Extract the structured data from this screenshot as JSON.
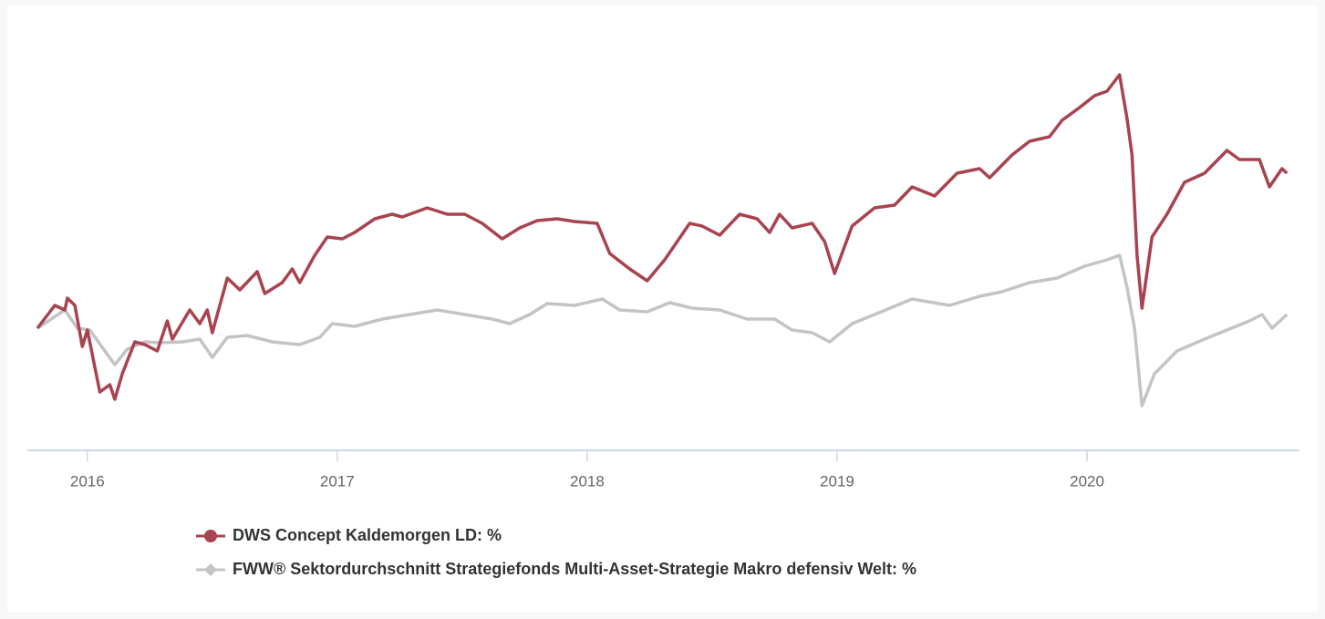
{
  "chart_data": {
    "type": "line",
    "xlim": [
      2015.76,
      2020.85
    ],
    "xticks": [
      2016,
      2017,
      2018,
      2019,
      2020
    ],
    "ylim": [
      -13.4,
      31
    ],
    "legend": "bottom-left",
    "series": [
      {
        "name": "DWS Concept Kaldemorgen LD: %",
        "color": "#a8434f",
        "marker": "circle",
        "x": [
          2015.8,
          2015.87,
          2015.91,
          2015.92,
          2015.95,
          2015.98,
          2016.0,
          2016.05,
          2016.09,
          2016.11,
          2016.14,
          2016.19,
          2016.23,
          2016.28,
          2016.32,
          2016.34,
          2016.41,
          2016.45,
          2016.48,
          2016.5,
          2016.56,
          2016.61,
          2016.68,
          2016.71,
          2016.78,
          2016.82,
          2016.85,
          2016.91,
          2016.96,
          2017.02,
          2017.07,
          2017.15,
          2017.22,
          2017.26,
          2017.36,
          2017.44,
          2017.51,
          2017.58,
          2017.66,
          2017.73,
          2017.8,
          2017.88,
          2017.95,
          2018.04,
          2018.09,
          2018.17,
          2018.24,
          2018.31,
          2018.41,
          2018.46,
          2018.53,
          2018.61,
          2018.68,
          2018.73,
          2018.77,
          2018.82,
          2018.9,
          2018.95,
          2018.99,
          2019.06,
          2019.15,
          2019.23,
          2019.3,
          2019.39,
          2019.48,
          2019.57,
          2019.61,
          2019.7,
          2019.77,
          2019.85,
          2019.9,
          2019.97,
          2020.03,
          2020.08,
          2020.13,
          2020.16,
          2020.18,
          2020.2,
          2020.22,
          2020.26,
          2020.32,
          2020.39,
          2020.47,
          2020.56,
          2020.61,
          2020.69,
          2020.73,
          2020.78,
          2020.8
        ],
        "values": [
          0,
          2.5,
          2.0,
          3.3,
          2.5,
          -2.0,
          -0.2,
          -7.0,
          -6.2,
          -7.8,
          -5.0,
          -1.5,
          -1.8,
          -2.5,
          0.8,
          -1.2,
          2.0,
          0.5,
          2.0,
          -0.5,
          5.5,
          4.2,
          6.2,
          3.8,
          5.0,
          6.5,
          5.0,
          8.0,
          10.0,
          9.8,
          10.5,
          12.0,
          12.5,
          12.2,
          13.2,
          12.5,
          12.5,
          11.5,
          9.8,
          11.0,
          11.8,
          12.0,
          11.7,
          11.5,
          8.2,
          6.5,
          5.2,
          7.5,
          11.5,
          11.2,
          10.2,
          12.5,
          12.0,
          10.5,
          12.5,
          11.0,
          11.5,
          9.5,
          6.0,
          11.2,
          13.2,
          13.5,
          15.5,
          14.5,
          17.0,
          17.5,
          16.5,
          19.0,
          20.5,
          21.0,
          22.8,
          24.2,
          25.5,
          26.0,
          27.8,
          23.0,
          19.0,
          8.0,
          2.2,
          10.0,
          12.5,
          16.0,
          17.0,
          19.5,
          18.5,
          18.5,
          15.5,
          17.5,
          17.0
        ]
      },
      {
        "name": "FWW® Sektordurchschnitt Strategiefonds Multi-Asset-Strategie Makro defensiv Welt: %",
        "color": "#c4c4c4",
        "marker": "diamond",
        "x": [
          2015.8,
          2015.91,
          2015.96,
          2016.01,
          2016.07,
          2016.11,
          2016.16,
          2016.23,
          2016.29,
          2016.38,
          2016.45,
          2016.5,
          2016.56,
          2016.64,
          2016.74,
          2016.85,
          2016.93,
          2016.98,
          2017.07,
          2017.18,
          2017.29,
          2017.4,
          2017.51,
          2017.62,
          2017.69,
          2017.77,
          2017.84,
          2017.95,
          2018.06,
          2018.13,
          2018.24,
          2018.33,
          2018.42,
          2018.53,
          2018.64,
          2018.75,
          2018.82,
          2018.9,
          2018.97,
          2019.06,
          2019.15,
          2019.3,
          2019.45,
          2019.57,
          2019.66,
          2019.77,
          2019.88,
          2019.99,
          2020.08,
          2020.13,
          2020.16,
          2020.19,
          2020.22,
          2020.27,
          2020.36,
          2020.47,
          2020.56,
          2020.65,
          2020.7,
          2020.74,
          2020.8
        ],
        "values": [
          0,
          2.0,
          0,
          -0.2,
          -2.5,
          -4.0,
          -2.3,
          -1.5,
          -1.6,
          -1.5,
          -1.2,
          -3.2,
          -1.0,
          -0.8,
          -1.5,
          -1.8,
          -1.0,
          0.5,
          0.2,
          1.0,
          1.5,
          2.0,
          1.5,
          1.0,
          0.5,
          1.5,
          2.7,
          2.5,
          3.2,
          2.0,
          1.8,
          2.8,
          2.2,
          2.0,
          1.0,
          1.0,
          -0.2,
          -0.5,
          -1.5,
          0.5,
          1.5,
          3.2,
          2.5,
          3.5,
          4.0,
          5.0,
          5.5,
          6.8,
          7.5,
          8.0,
          4.5,
          0,
          -8.5,
          -5.0,
          -2.5,
          -1.2,
          -0.2,
          0.8,
          1.5,
          0,
          1.5
        ]
      }
    ]
  }
}
